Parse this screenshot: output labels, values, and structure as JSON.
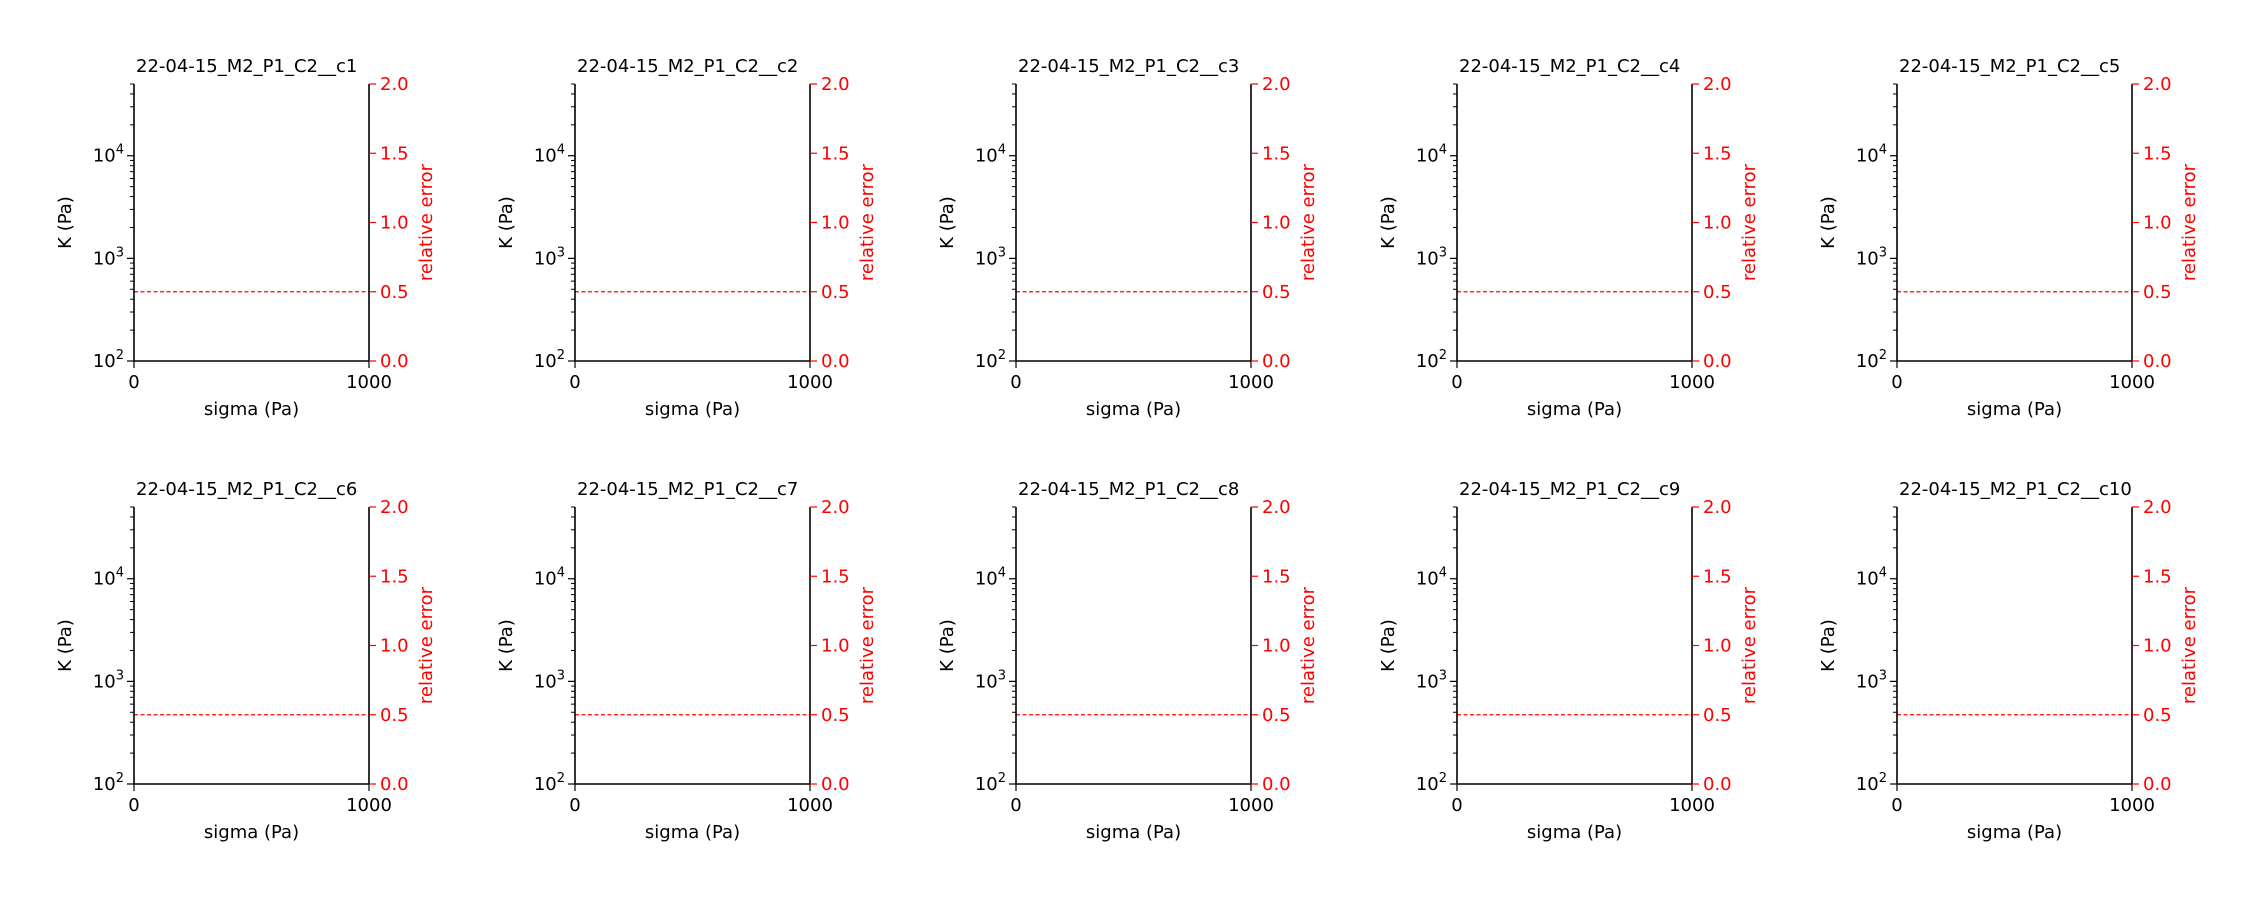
{
  "chart_data": {
    "type": "line",
    "layout": {
      "rows": 2,
      "cols": 5
    },
    "shared": {
      "xlabel": "sigma (Pa)",
      "ylabel": "K (Pa)",
      "y2label": "relative error",
      "xlim": [
        0,
        1000
      ],
      "x_ticks": [
        "0",
        "1000"
      ],
      "ylim": [
        100,
        50000
      ],
      "yscale": "log",
      "y_ticks": [
        {
          "value": 100,
          "base": "10",
          "exp": "2"
        },
        {
          "value": 1000,
          "base": "10",
          "exp": "3"
        },
        {
          "value": 10000,
          "base": "10",
          "exp": "4"
        }
      ],
      "y2lim": [
        0,
        2.0
      ],
      "y2_ticks": [
        "0.0",
        "0.5",
        "1.0",
        "1.5",
        "2.0"
      ],
      "threshold": {
        "y2": 0.5,
        "style": "dashed"
      },
      "grid": false,
      "colors": {
        "axis": "#000000",
        "secondary": "#ff0000"
      }
    },
    "panels": [
      {
        "title": "22-04-15_M2_P1_C2__c1",
        "series": []
      },
      {
        "title": "22-04-15_M2_P1_C2__c2",
        "series": []
      },
      {
        "title": "22-04-15_M2_P1_C2__c3",
        "series": []
      },
      {
        "title": "22-04-15_M2_P1_C2__c4",
        "series": []
      },
      {
        "title": "22-04-15_M2_P1_C2__c5",
        "series": []
      },
      {
        "title": "22-04-15_M2_P1_C2__c6",
        "series": []
      },
      {
        "title": "22-04-15_M2_P1_C2__c7",
        "series": []
      },
      {
        "title": "22-04-15_M2_P1_C2__c8",
        "series": []
      },
      {
        "title": "22-04-15_M2_P1_C2__c9",
        "series": []
      },
      {
        "title": "22-04-15_M2_P1_C2__c10",
        "series": []
      }
    ]
  }
}
